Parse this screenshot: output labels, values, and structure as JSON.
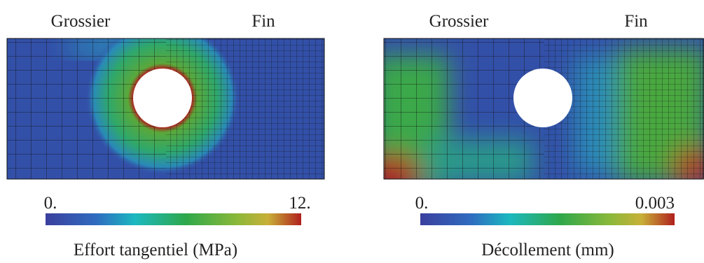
{
  "panels": [
    {
      "left_label": "Grossier",
      "right_label": "Fin",
      "colorbar": {
        "min_label": "0.",
        "max_label": "12."
      },
      "caption": "Effort tangentiel (MPa)"
    },
    {
      "left_label": "Grossier",
      "right_label": "Fin",
      "colorbar": {
        "min_label": "0.",
        "max_label": "0.003"
      },
      "caption": "Décollement (mm)"
    }
  ]
}
